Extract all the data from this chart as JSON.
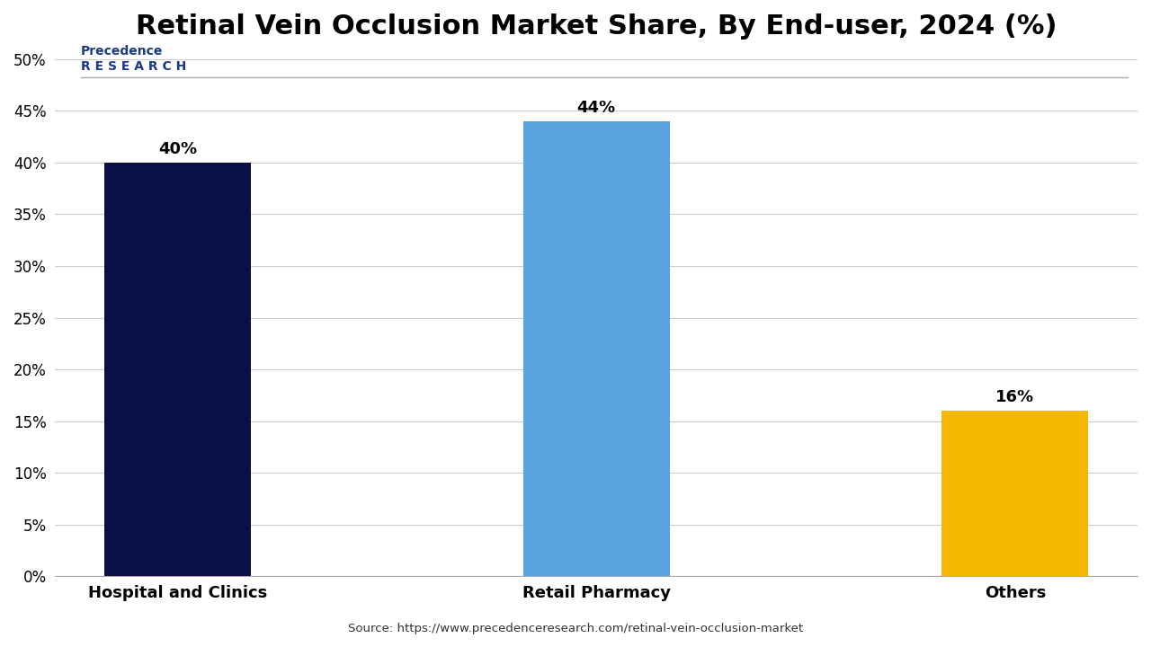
{
  "categories": [
    "Hospital and Clinics",
    "Retail Pharmacy",
    "Others"
  ],
  "values": [
    40,
    44,
    16
  ],
  "bar_colors": [
    "#0a1045",
    "#5ba3e0",
    "#f5b800"
  ],
  "title": "Retinal Vein Occlusion Market Share, By End-user, 2024 (%)",
  "ylim": [
    0,
    50
  ],
  "yticks": [
    0,
    5,
    10,
    15,
    20,
    25,
    30,
    35,
    40,
    45,
    50
  ],
  "ytick_labels": [
    "0%",
    "5%",
    "10%",
    "15%",
    "20%",
    "25%",
    "30%",
    "35%",
    "40%",
    "45%",
    "50%"
  ],
  "source_text": "Source: https://www.precedenceresearch.com/retinal-vein-occlusion-market",
  "background_color": "#ffffff",
  "title_fontsize": 22,
  "label_fontsize": 13,
  "bar_label_fontsize": 13,
  "tick_fontsize": 12,
  "bar_width": 0.35,
  "grid_color": "#cccccc"
}
